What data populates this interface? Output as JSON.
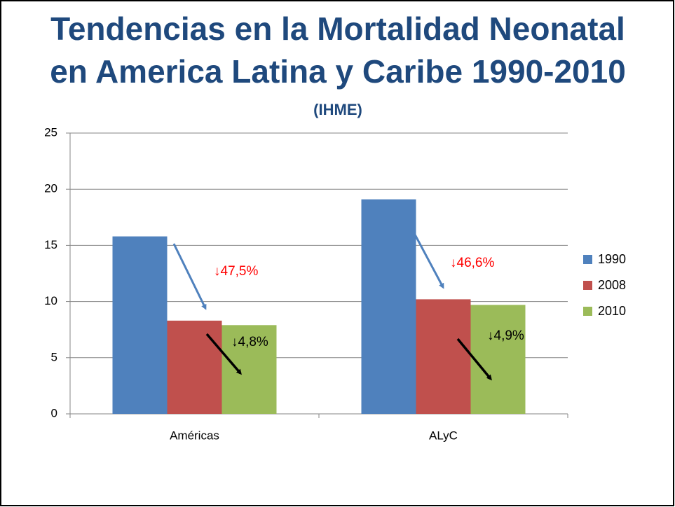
{
  "chart_data": {
    "type": "bar",
    "title": [
      "Tendencias en la Mortalidad Neonatal",
      "en America Latina y Caribe 1990-2010"
    ],
    "subtitle": "(IHME)",
    "categories": [
      "Américas",
      "ALyC"
    ],
    "series": [
      {
        "name": "1990",
        "color": "#4f81bd",
        "values": [
          15.8,
          19.1
        ]
      },
      {
        "name": "2008",
        "color": "#c0504d",
        "values": [
          8.3,
          10.2
        ]
      },
      {
        "name": "2010",
        "color": "#9bbb59",
        "values": [
          7.9,
          9.7
        ]
      }
    ],
    "ylim": [
      0,
      25
    ],
    "yticks": [
      0,
      5,
      10,
      15,
      20,
      25
    ],
    "grid": true,
    "legend": "right",
    "annotations": [
      {
        "text": "↓47,5%",
        "color": "#ff0000"
      },
      {
        "text": "↓4,8%",
        "color": "#000000"
      },
      {
        "text": "↓46,6%",
        "color": "#ff0000"
      },
      {
        "text": "↓4,9%",
        "color": "#000000"
      }
    ]
  }
}
